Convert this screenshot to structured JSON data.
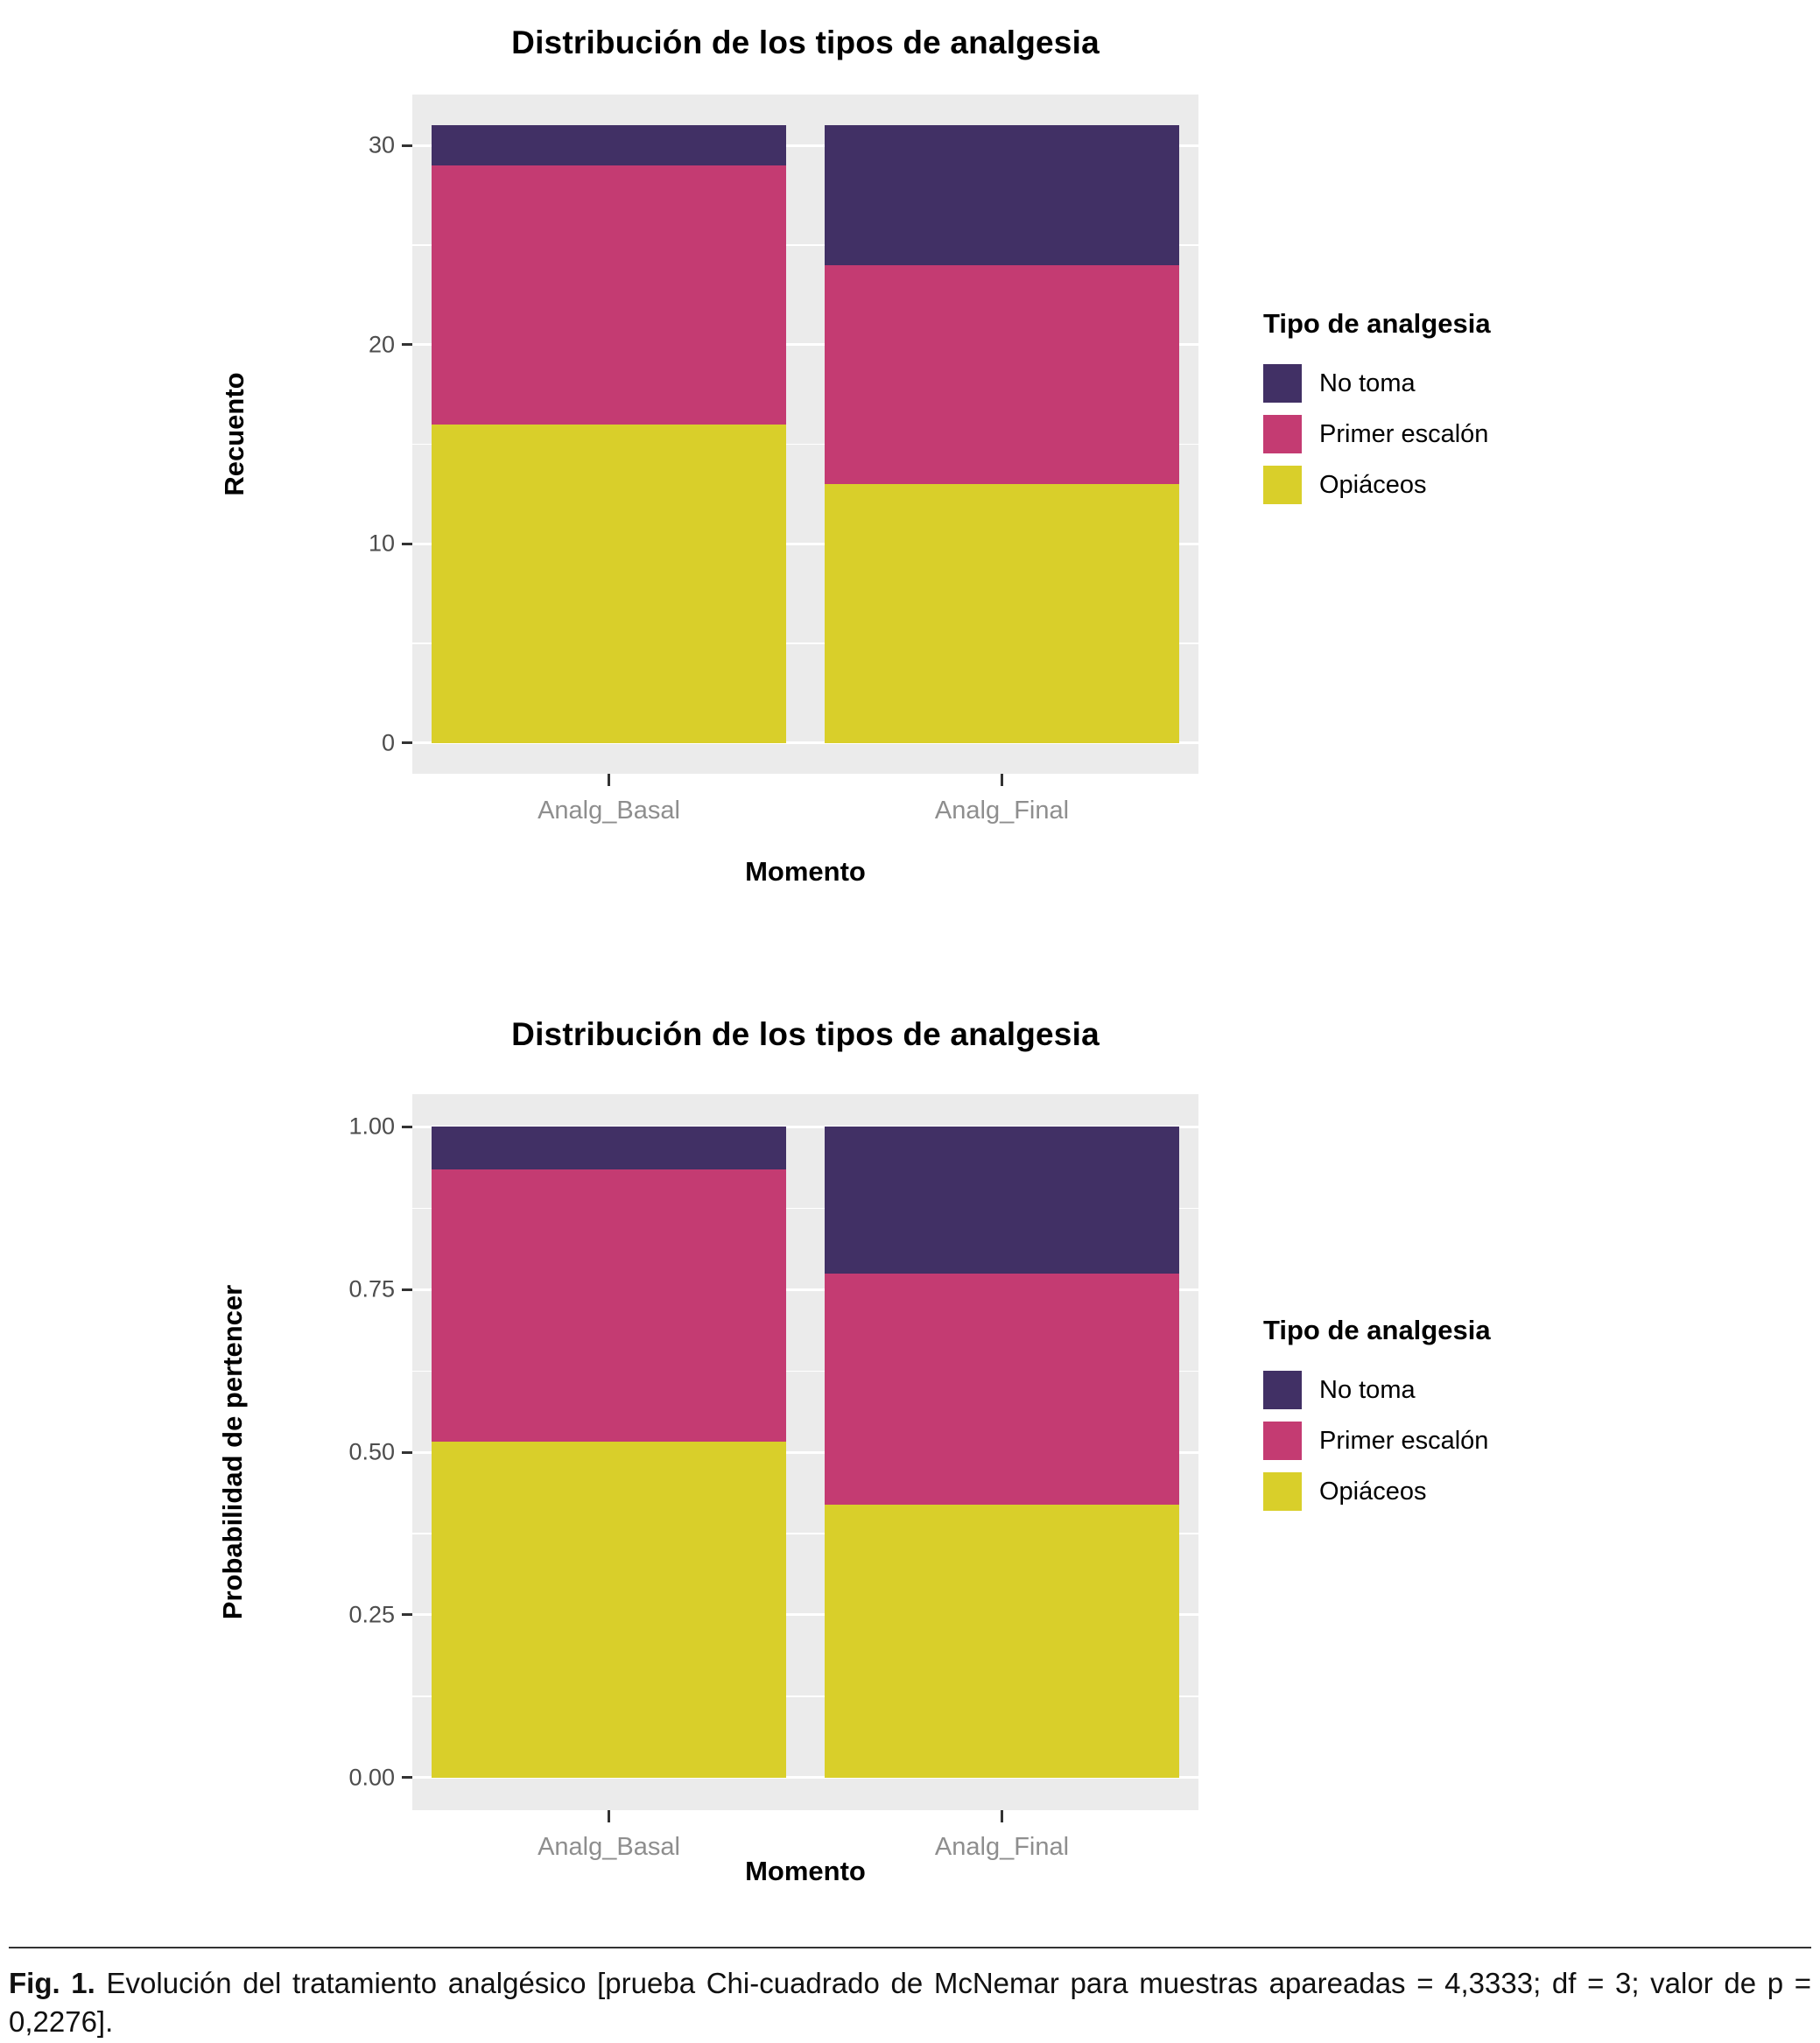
{
  "figure": {
    "caption_label": "Fig. 1.",
    "caption_text": "Evolución del tratamiento analgésico [prueba Chi-cuadrado de McNemar para muestras apareadas = 4,3333; df = 3; valor de p = 0,2276]."
  },
  "chart_data": [
    {
      "type": "bar",
      "subtype": "stacked",
      "title": "Distribución de los tipos de analgesia",
      "xlabel": "Momento",
      "ylabel": "Recuento",
      "categories": [
        "Analg_Basal",
        "Analg_Final"
      ],
      "series": [
        {
          "name": "Opiáceos",
          "color": "#D9CF2A",
          "values": [
            16,
            13
          ]
        },
        {
          "name": "Primer escalón",
          "color": "#C43B72",
          "values": [
            13,
            11
          ]
        },
        {
          "name": "No toma",
          "color": "#413065",
          "values": [
            2,
            7
          ]
        }
      ],
      "stack_order": "bottom-to-top",
      "totals": [
        31,
        31
      ],
      "legend_title": "Tipo de analgesia",
      "legend_position": "right",
      "legend_order": [
        "No toma",
        "Primer escalón",
        "Opiáceos"
      ],
      "ylim": [
        0,
        31
      ],
      "yticks": {
        "values": [
          0,
          10,
          20,
          30
        ],
        "labels": [
          "0",
          "10",
          "20",
          "30"
        ]
      },
      "grid": "white major and minor gridlines on grey panel",
      "panel_color": "#EBEBEB"
    },
    {
      "type": "bar",
      "subtype": "stacked",
      "title": "Distribución de los tipos de analgesia",
      "xlabel": "Momento",
      "ylabel": "Probabilidad de pertencer",
      "categories": [
        "Analg_Basal",
        "Analg_Final"
      ],
      "series": [
        {
          "name": "Opiáceos",
          "color": "#D9CF2A",
          "values": [
            0.516,
            0.419
          ]
        },
        {
          "name": "Primer escalón",
          "color": "#C43B72",
          "values": [
            0.419,
            0.355
          ]
        },
        {
          "name": "No toma",
          "color": "#413065",
          "values": [
            0.065,
            0.226
          ]
        }
      ],
      "stack_order": "bottom-to-top",
      "totals": [
        1.0,
        1.0
      ],
      "legend_title": "Tipo de analgesia",
      "legend_position": "right",
      "legend_order": [
        "No toma",
        "Primer escalón",
        "Opiáceos"
      ],
      "ylim": [
        0,
        1
      ],
      "yticks": {
        "values": [
          0,
          0.25,
          0.5,
          0.75,
          1
        ],
        "labels": [
          "0.00",
          "0.25",
          "0.50",
          "0.75",
          "1.00"
        ]
      },
      "grid": "white major and minor gridlines on grey panel",
      "panel_color": "#EBEBEB"
    }
  ]
}
